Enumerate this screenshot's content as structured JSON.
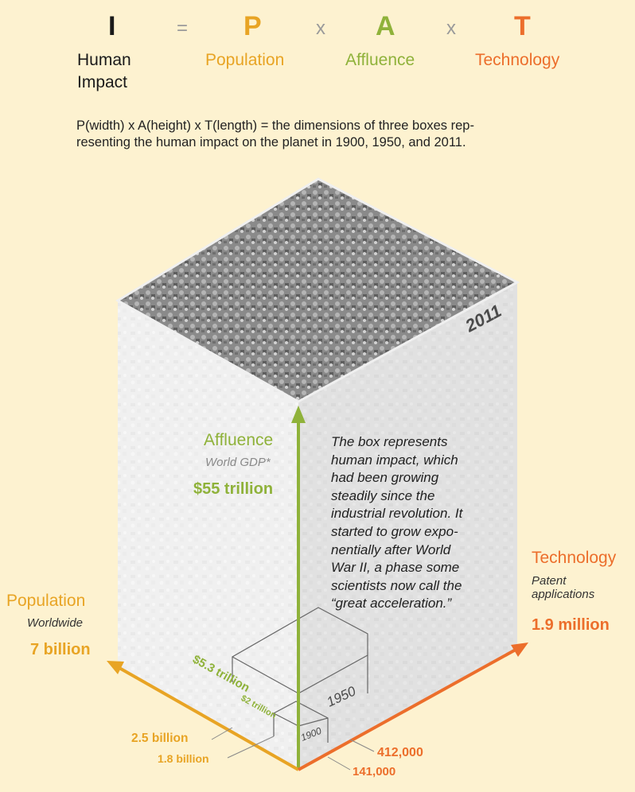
{
  "equation": {
    "i": {
      "letter": "I",
      "word_line1": "Human",
      "word_line2": "Impact",
      "color": "#1a1a1a"
    },
    "equals": "=",
    "times": "x",
    "p": {
      "letter": "P",
      "word": "Population",
      "color": "#e8a424"
    },
    "a": {
      "letter": "A",
      "word": "Affluence",
      "color": "#8fb23a"
    },
    "t": {
      "letter": "T",
      "word": "Technology",
      "color": "#ec6e2b"
    }
  },
  "description": {
    "line1": "P(width) x A(height) x T(length) = the dimensions of three boxes rep-",
    "line2": "resenting the human impact on the planet in 1900, 1950, and 2011."
  },
  "box_years": {
    "y2011": "2011",
    "y1950": "1950",
    "y1900": "1900"
  },
  "affluence": {
    "title": "Affluence",
    "subtitle": "World GDP*",
    "value_2011": "$55 trillion",
    "value_1950": "$5.3 trillion",
    "value_1900": "$2 trillion"
  },
  "population": {
    "title": "Population",
    "subtitle": "Worldwide",
    "value_2011": "7 billion",
    "value_1950": "2.5 billion",
    "value_1900": "1.8 billion"
  },
  "technology": {
    "title": "Technology",
    "subtitle_line1": "Patent",
    "subtitle_line2": "applications",
    "value_2011": "1.9 million",
    "value_1950": "412,000",
    "value_1900": "141,000"
  },
  "story": {
    "lines": [
      "The box represents",
      "human impact, which",
      "had been growing",
      "steadily since the",
      "industrial revolution. It",
      "started to grow expo-",
      "nentially after World",
      "War II, a phase some",
      "scientists now call the",
      "“great acceleration.”"
    ]
  }
}
